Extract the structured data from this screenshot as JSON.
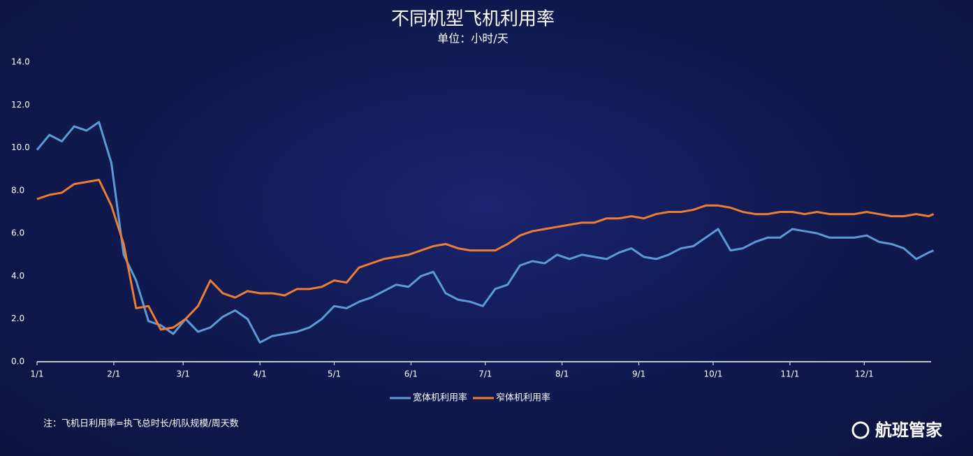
{
  "chart_data": {
    "type": "line",
    "title": "不同机型飞机利用率",
    "subtitle": "单位：小时/天",
    "note": "注：飞机日利用率=执飞总时长/机队规模/周天数",
    "brand": "航班管家",
    "x": [
      0,
      5,
      10,
      15,
      20,
      25,
      30,
      35,
      40,
      45,
      50,
      55,
      60,
      65,
      70,
      75,
      80,
      85,
      90,
      95,
      100,
      105,
      110,
      115,
      120,
      125,
      130,
      135,
      140,
      145,
      150,
      155,
      160,
      165,
      170,
      175,
      180,
      185,
      190,
      195,
      200,
      205,
      210,
      215,
      220,
      225,
      230,
      235,
      240,
      245,
      250,
      255,
      260,
      265,
      270,
      275,
      280,
      285,
      290,
      295,
      300,
      305,
      310,
      315,
      320,
      325,
      330,
      335,
      340,
      345,
      350,
      355,
      360,
      362
    ],
    "series": [
      {
        "name": "宽体机利用率",
        "color": "#5b9bd5",
        "values": [
          9.9,
          10.6,
          10.3,
          11.0,
          10.8,
          11.2,
          9.3,
          5.0,
          3.8,
          1.9,
          1.7,
          1.3,
          2.0,
          1.4,
          1.6,
          2.1,
          2.4,
          2.0,
          0.9,
          1.2,
          1.3,
          1.4,
          1.6,
          2.0,
          2.6,
          2.5,
          2.8,
          3.0,
          3.3,
          3.6,
          3.5,
          4.0,
          4.2,
          3.2,
          2.9,
          2.8,
          2.6,
          3.4,
          3.6,
          4.5,
          4.7,
          4.6,
          5.0,
          4.8,
          5.0,
          4.9,
          4.8,
          5.1,
          5.3,
          4.9,
          4.8,
          5.0,
          5.3,
          5.4,
          5.8,
          6.2,
          5.2,
          5.3,
          5.6,
          5.8,
          5.8,
          6.2,
          6.1,
          6.0,
          5.8,
          5.8,
          5.8,
          5.9,
          5.6,
          5.5,
          5.3,
          4.8,
          5.1,
          5.2
        ]
      },
      {
        "name": "窄体机利用率",
        "color": "#ed7d31",
        "values": [
          7.6,
          7.8,
          7.9,
          8.3,
          8.4,
          8.5,
          7.3,
          5.5,
          2.5,
          2.6,
          1.5,
          1.6,
          2.0,
          2.6,
          3.8,
          3.2,
          3.0,
          3.3,
          3.2,
          3.2,
          3.1,
          3.4,
          3.4,
          3.5,
          3.8,
          3.7,
          4.4,
          4.6,
          4.8,
          4.9,
          5.0,
          5.2,
          5.4,
          5.5,
          5.3,
          5.2,
          5.2,
          5.2,
          5.5,
          5.9,
          6.1,
          6.2,
          6.3,
          6.4,
          6.5,
          6.5,
          6.7,
          6.7,
          6.8,
          6.7,
          6.9,
          7.0,
          7.0,
          7.1,
          7.3,
          7.3,
          7.2,
          7.0,
          6.9,
          6.9,
          7.0,
          7.0,
          6.9,
          7.0,
          6.9,
          6.9,
          6.9,
          7.0,
          6.9,
          6.8,
          6.8,
          6.9,
          6.8,
          6.9
        ]
      }
    ],
    "xlim": [
      0,
      361
    ],
    "xticks": [
      {
        "value": 0,
        "label": "1/1"
      },
      {
        "value": 31,
        "label": "2/1"
      },
      {
        "value": 59,
        "label": "3/1"
      },
      {
        "value": 90,
        "label": "4/1"
      },
      {
        "value": 120,
        "label": "5/1"
      },
      {
        "value": 151,
        "label": "6/1"
      },
      {
        "value": 181,
        "label": "7/1"
      },
      {
        "value": 212,
        "label": "8/1"
      },
      {
        "value": 243,
        "label": "9/1"
      },
      {
        "value": 273,
        "label": "10/1"
      },
      {
        "value": 304,
        "label": "11/1"
      },
      {
        "value": 334,
        "label": "12/1"
      }
    ],
    "ylim": [
      0,
      14
    ],
    "yticks": [
      {
        "value": 0,
        "label": "0.0"
      },
      {
        "value": 2,
        "label": "2.0"
      },
      {
        "value": 4,
        "label": "4.0"
      },
      {
        "value": 6,
        "label": "6.0"
      },
      {
        "value": 8,
        "label": "8.0"
      },
      {
        "value": 10,
        "label": "10.0"
      },
      {
        "value": 12,
        "label": "12.0"
      },
      {
        "value": 14,
        "label": "14.0"
      }
    ],
    "legend": "bottom"
  }
}
